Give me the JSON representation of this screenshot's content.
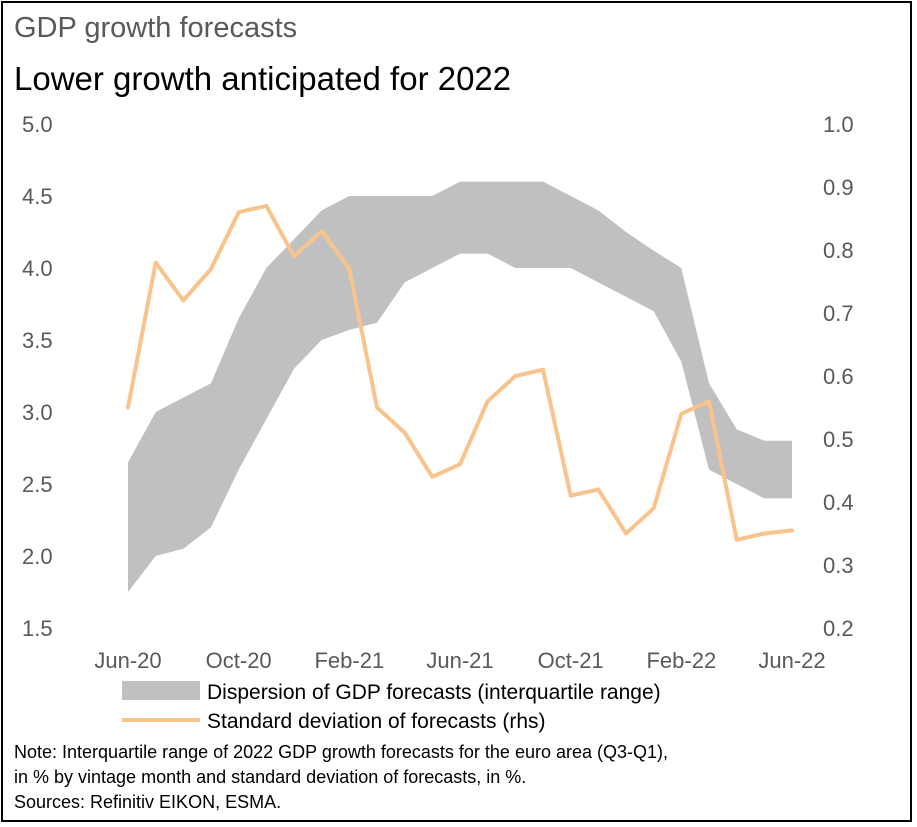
{
  "title": "GDP growth forecasts",
  "subtitle": "Lower growth anticipated for 2022",
  "note_lines": [
    "Note: Interquartile range of 2022 GDP growth forecasts for the euro area (Q3-Q1),",
    "in % by vintage month and standard deviation of forecasts, in %.",
    "Sources: Refinitiv EIKON, ESMA."
  ],
  "chart_data": {
    "type": "line",
    "x": [
      "Jun-20",
      "Jul-20",
      "Aug-20",
      "Sep-20",
      "Oct-20",
      "Nov-20",
      "Dec-20",
      "Jan-21",
      "Feb-21",
      "Mar-21",
      "Apr-21",
      "May-21",
      "Jun-21",
      "Jul-21",
      "Aug-21",
      "Sep-21",
      "Oct-21",
      "Nov-21",
      "Dec-21",
      "Jan-22",
      "Feb-22",
      "Mar-22",
      "Apr-22",
      "May-22",
      "Jun-22"
    ],
    "x_tick_labels": [
      "Jun-20",
      "Oct-20",
      "Feb-21",
      "Jun-21",
      "Oct-21",
      "Feb-22",
      "Jun-22"
    ],
    "y_left": {
      "range": [
        1.5,
        5.0
      ],
      "ticks": [
        "1.5",
        "2.0",
        "2.5",
        "3.0",
        "3.5",
        "4.0",
        "4.5",
        "5.0"
      ]
    },
    "y_right": {
      "range": [
        0.2,
        1.0
      ],
      "ticks": [
        "0.2",
        "0.3",
        "0.4",
        "0.5",
        "0.6",
        "0.7",
        "0.8",
        "0.9",
        "1.0"
      ]
    },
    "series": [
      {
        "name": "Dispersion of GDP forecasts (interquartile range)",
        "kind": "band",
        "axis": "left",
        "color": "#c0c0c0",
        "upper": [
          2.65,
          3.0,
          3.1,
          3.2,
          3.65,
          4.0,
          4.2,
          4.4,
          4.5,
          4.5,
          4.5,
          4.5,
          4.6,
          4.6,
          4.6,
          4.6,
          4.5,
          4.4,
          4.25,
          4.12,
          4.0,
          3.2,
          2.88,
          2.8,
          2.8
        ],
        "lower": [
          1.75,
          2.0,
          2.05,
          2.2,
          2.6,
          2.95,
          3.3,
          3.5,
          3.57,
          3.62,
          3.9,
          4.0,
          4.1,
          4.1,
          4.0,
          4.0,
          4.0,
          3.9,
          3.8,
          3.7,
          3.35,
          2.6,
          2.5,
          2.4,
          2.4
        ]
      },
      {
        "name": "Standard deviation of forecasts (rhs)",
        "kind": "line",
        "axis": "right",
        "color": "#f8c48c",
        "values": [
          0.55,
          0.78,
          0.72,
          0.77,
          0.86,
          0.87,
          0.79,
          0.83,
          0.77,
          0.55,
          0.51,
          0.44,
          0.46,
          0.56,
          0.6,
          0.61,
          0.41,
          0.42,
          0.35,
          0.39,
          0.54,
          0.56,
          0.34,
          0.35,
          0.355
        ]
      }
    ],
    "grid": false,
    "legend_position": "bottom"
  }
}
